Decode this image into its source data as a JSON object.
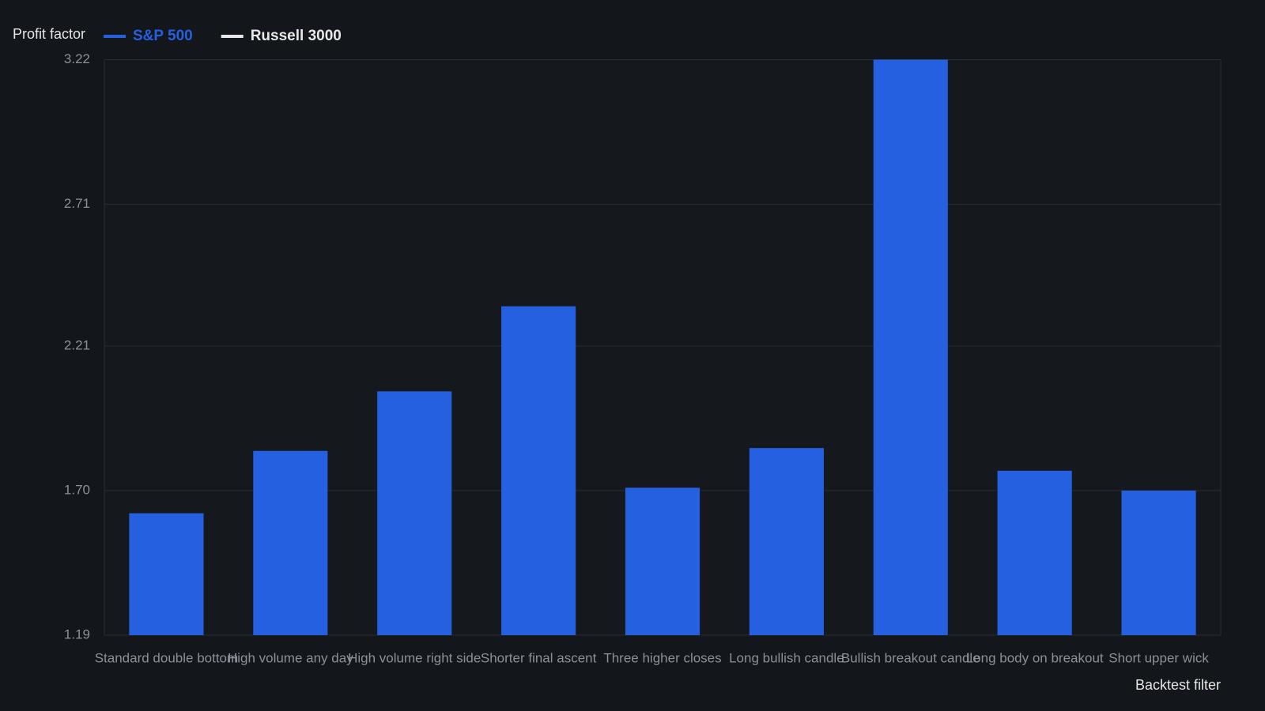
{
  "chart_data": {
    "type": "bar",
    "y_label": "Profit factor",
    "x_label": "Backtest filter",
    "categories": [
      "Standard double bottom",
      "High volume any day",
      "High volume right side",
      "Shorter final ascent",
      "Three higher closes",
      "Long bullish candle",
      "Bullish breakout candle",
      "Long body on breakout",
      "Short upper wick"
    ],
    "series": [
      {
        "name": "S&P 500",
        "color": "#2560e0",
        "values": [
          1.62,
          1.84,
          2.05,
          2.35,
          1.71,
          1.85,
          3.22,
          1.77,
          1.7
        ]
      },
      {
        "name": "Russell 3000",
        "color": "#e8e8e8",
        "values": [
          null,
          null,
          null,
          null,
          null,
          null,
          null,
          null,
          null
        ]
      }
    ],
    "ylim": [
      1.19,
      3.22
    ],
    "yticks": [
      1.19,
      {
        "value": 1.7,
        "label": "1.70"
      },
      2.21,
      2.71,
      3.22
    ],
    "grid": true
  }
}
